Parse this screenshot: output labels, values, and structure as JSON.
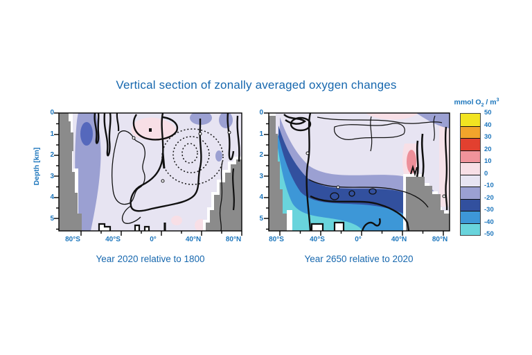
{
  "title": "Vertical section of zonally averaged oxygen changes",
  "accent_text_color": "#1667AE",
  "tick_text_color": "#1B75BC",
  "colorbar": {
    "unit_prefix": "mmol O",
    "unit_sub": "2",
    "unit_mid": " / m",
    "unit_sup": "3",
    "levels": [
      50,
      40,
      30,
      20,
      10,
      0,
      -10,
      -20,
      -30,
      -40,
      -50
    ],
    "colors": [
      "#F2E421",
      "#F2A42B",
      "#E2402F",
      "#F0939B",
      "#F8DFE6",
      "#E7E4F2",
      "#9BA0D2",
      "#32509E",
      "#3D97D7",
      "#69D4DC"
    ],
    "land_color": "#8B8B8B"
  },
  "axes": {
    "x_ticks": [
      "80°S",
      "40°S",
      "0°",
      "40°N",
      "80°N"
    ],
    "y_ticks": [
      "0",
      "1",
      "2",
      "3",
      "4",
      "5"
    ],
    "y_label": "Depth [km]"
  },
  "panels": [
    {
      "caption": "Year 2020 relative to 1800"
    },
    {
      "caption": "Year 2650 relative to 2020"
    }
  ],
  "chart_data": {
    "type": "heatmap",
    "title": "Vertical section of zonally averaged oxygen changes",
    "ylabel": "Depth [km]",
    "y_range_km": [
      0,
      5.5
    ],
    "x_tick_labels": [
      "80°S",
      "40°S",
      "0°",
      "40°N",
      "80°N"
    ],
    "colorbar_unit": "mmol O2 / m3",
    "colorbar_levels": [
      50,
      40,
      30,
      20,
      10,
      0,
      -10,
      -20,
      -30,
      -40,
      -50
    ],
    "colorbar_colors": [
      "#F2E421",
      "#F2A42B",
      "#E2402F",
      "#F0939B",
      "#F8DFE6",
      "#E7E4F2",
      "#9BA0D2",
      "#32509E",
      "#3D97D7",
      "#69D4DC"
    ],
    "grid": false,
    "legend_position": "right",
    "panels": [
      {
        "caption": "Year 2020 relative to 1800",
        "style": "filled contours, mostly 0 to -10 band, thick solid zero contours, dotted contours near 40N at 2 km",
        "latitudes": [
          -80,
          -60,
          -40,
          -20,
          0,
          20,
          40,
          60,
          80
        ],
        "depths_km": [
          0.25,
          1,
          2,
          3,
          4,
          5
        ],
        "values": [
          [
            -5,
            -15,
            -5,
            -5,
            5,
            -5,
            -15,
            -5,
            -5
          ],
          [
            -5,
            -25,
            -5,
            -5,
            5,
            -5,
            -5,
            -5,
            -5
          ],
          [
            -5,
            -15,
            -5,
            -5,
            -5,
            -5,
            -5,
            -5,
            -5
          ],
          [
            -5,
            -15,
            -5,
            -5,
            -5,
            -5,
            -5,
            -5,
            null
          ],
          [
            null,
            -5,
            -5,
            -5,
            -5,
            -5,
            -5,
            null,
            null
          ],
          [
            null,
            -5,
            -5,
            -5,
            -5,
            -5,
            null,
            null,
            null
          ]
        ]
      },
      {
        "caption": "Year 2650 relative to 2020",
        "style": "strong deep-ocean oxygen loss (-20 to -50) below 2.5 km, gain (+10 to +20) near 60N at 1.5-2.5 km",
        "latitudes": [
          -80,
          -60,
          -40,
          -20,
          0,
          20,
          40,
          60,
          80
        ],
        "depths_km": [
          0.25,
          1,
          2,
          3,
          4,
          5
        ],
        "values": [
          [
            -5,
            -5,
            -5,
            -5,
            -5,
            -5,
            -5,
            5,
            -15
          ],
          [
            -15,
            -15,
            -5,
            -5,
            -5,
            -5,
            -5,
            5,
            -5
          ],
          [
            -25,
            -35,
            -15,
            -5,
            -5,
            -5,
            -5,
            15,
            5
          ],
          [
            -35,
            -45,
            -25,
            -15,
            -15,
            -15,
            -15,
            5,
            null
          ],
          [
            null,
            -45,
            -35,
            -25,
            -25,
            -25,
            -25,
            null,
            null
          ],
          [
            null,
            -45,
            -45,
            -35,
            -35,
            -35,
            null,
            null,
            null
          ]
        ]
      }
    ]
  }
}
